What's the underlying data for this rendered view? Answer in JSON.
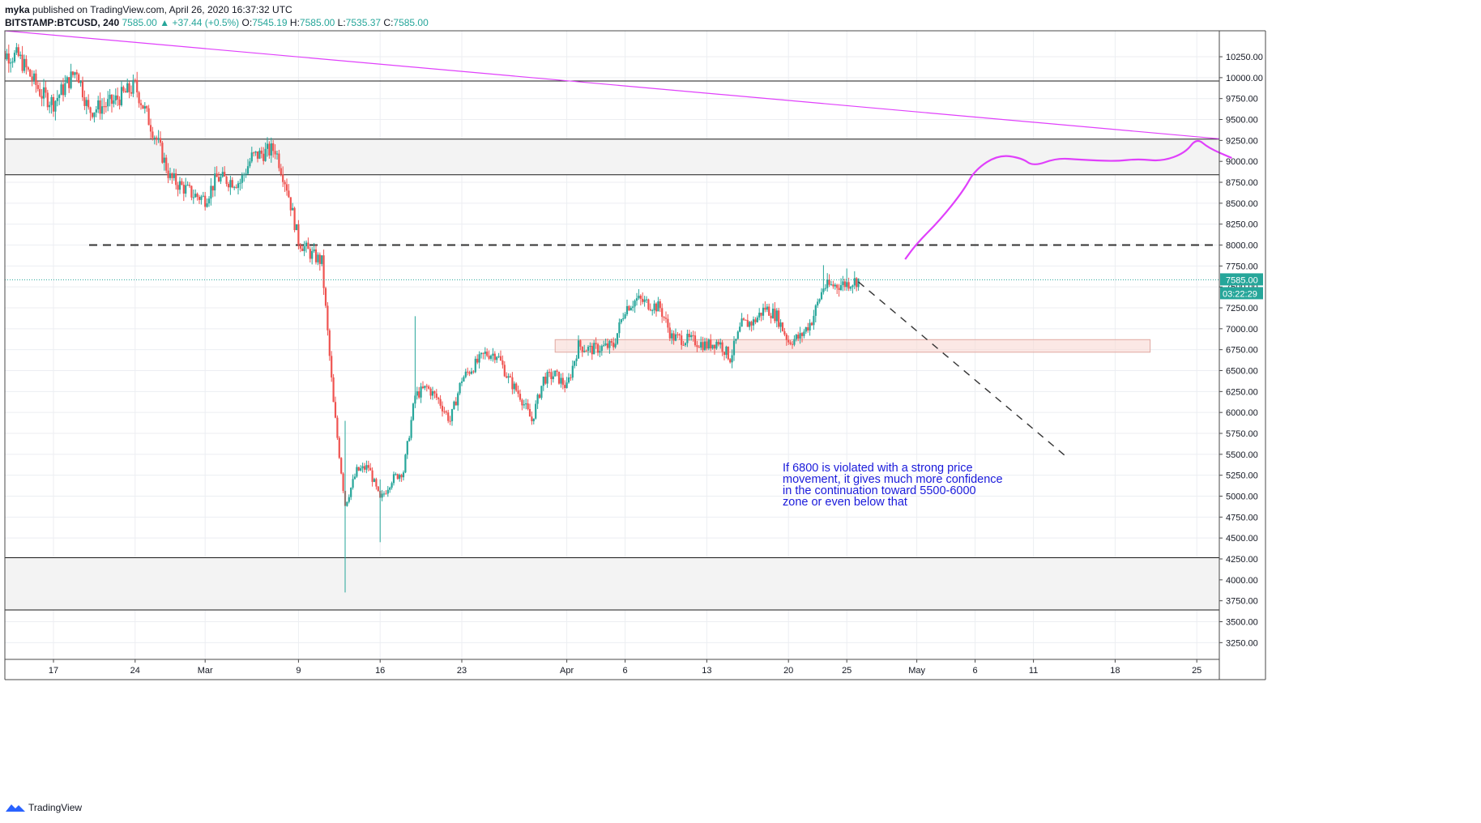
{
  "header": {
    "author": "myka",
    "published": "published on TradingView.com, April 26, 2020 16:37:32 UTC",
    "symbol": "BITSTAMP:BTCUSD, 240",
    "change_label": "▲",
    "last": "7585.00",
    "change": "+37.44 (+0.5%)",
    "o_label": "O:",
    "o_val": "7545.19",
    "h_label": "H:",
    "h_val": "7585.00",
    "l_label": "L:",
    "l_val": "7535.37",
    "c_label": "C:",
    "c_val": "7585.00"
  },
  "footer": {
    "brand": "TradingView"
  },
  "colors": {
    "up": "#26a69a",
    "down": "#ef5350",
    "magenta": "#e040fb",
    "annotation": "#1a1adb",
    "zone": "#f8d8d3"
  },
  "chart_data": {
    "type": "candlestick",
    "ylim": [
      3050,
      10560
    ],
    "yticks": [
      10250,
      10000,
      9750,
      9500,
      9250,
      9000,
      8750,
      8500,
      8250,
      8000,
      7750,
      7500,
      7250,
      7000,
      6750,
      6500,
      6250,
      6000,
      5750,
      5500,
      5250,
      5000,
      4750,
      4500,
      4250,
      4000,
      3750,
      3500,
      3250
    ],
    "ytick_labels": [
      "10250.00",
      "10000.00",
      "9750.00",
      "9500.00",
      "9250.00",
      "9000.00",
      "8750.00",
      "8500.00",
      "8250.00",
      "8000.00",
      "7750.00",
      "7500.00",
      "7250.00",
      "7000.00",
      "6750.00",
      "6500.00",
      "6250.00",
      "6000.00",
      "5750.00",
      "5500.00",
      "5250.00",
      "5000.00",
      "4750.00",
      "4500.00",
      "4250.00",
      "4000.00",
      "3750.00",
      "3500.00",
      "3250.00"
    ],
    "xticks": [
      {
        "label": "17",
        "date": "2020-02-17"
      },
      {
        "label": "24",
        "date": "2020-02-24"
      },
      {
        "label": "Mar",
        "date": "2020-03-01"
      },
      {
        "label": "9",
        "date": "2020-03-09"
      },
      {
        "label": "16",
        "date": "2020-03-16"
      },
      {
        "label": "23",
        "date": "2020-03-23"
      },
      {
        "label": "Apr",
        "date": "2020-04-01"
      },
      {
        "label": "6",
        "date": "2020-04-06"
      },
      {
        "label": "13",
        "date": "2020-04-13"
      },
      {
        "label": "20",
        "date": "2020-04-20"
      },
      {
        "label": "25",
        "date": "2020-04-25"
      },
      {
        "label": "May",
        "date": "2020-05-01"
      },
      {
        "label": "6",
        "date": "2020-05-06"
      },
      {
        "label": "11",
        "date": "2020-05-11"
      },
      {
        "label": "18",
        "date": "2020-05-18"
      },
      {
        "label": "25",
        "date": "2020-05-25"
      }
    ],
    "price_path": [
      [
        "2020-02-12",
        10300
      ],
      [
        "2020-02-14",
        10250
      ],
      [
        "2020-02-16",
        9800
      ],
      [
        "2020-02-17",
        9700
      ],
      [
        "2020-02-19",
        10100
      ],
      [
        "2020-02-20",
        9600
      ],
      [
        "2020-02-22",
        9700
      ],
      [
        "2020-02-24",
        9900
      ],
      [
        "2020-02-26",
        9200
      ],
      [
        "2020-02-27",
        8800
      ],
      [
        "2020-02-29",
        8600
      ],
      [
        "2020-03-01",
        8550
      ],
      [
        "2020-03-02",
        8800
      ],
      [
        "2020-03-04",
        8750
      ],
      [
        "2020-03-05",
        9050
      ],
      [
        "2020-03-07",
        9150
      ],
      [
        "2020-03-08",
        8700
      ],
      [
        "2020-03-09",
        8050
      ],
      [
        "2020-03-10",
        7900
      ],
      [
        "2020-03-11",
        7800
      ],
      [
        "2020-03-12",
        6100
      ],
      [
        "2020-03-13",
        4900
      ],
      [
        "2020-03-14",
        5300
      ],
      [
        "2020-03-15",
        5350
      ],
      [
        "2020-03-16",
        4950
      ],
      [
        "2020-03-17",
        5200
      ],
      [
        "2020-03-18",
        5300
      ],
      [
        "2020-03-19",
        6200
      ],
      [
        "2020-03-20",
        6300
      ],
      [
        "2020-03-21",
        6150
      ],
      [
        "2020-03-22",
        5900
      ],
      [
        "2020-03-23",
        6400
      ],
      [
        "2020-03-25",
        6700
      ],
      [
        "2020-03-26",
        6700
      ],
      [
        "2020-03-27",
        6400
      ],
      [
        "2020-03-28",
        6200
      ],
      [
        "2020-03-29",
        5900
      ],
      [
        "2020-03-30",
        6400
      ],
      [
        "2020-03-31",
        6450
      ],
      [
        "2020-04-01",
        6300
      ],
      [
        "2020-04-02",
        6800
      ],
      [
        "2020-04-03",
        6750
      ],
      [
        "2020-04-05",
        6800
      ],
      [
        "2020-04-06",
        7250
      ],
      [
        "2020-04-07",
        7350
      ],
      [
        "2020-04-08",
        7300
      ],
      [
        "2020-04-09",
        7250
      ],
      [
        "2020-04-10",
        6900
      ],
      [
        "2020-04-12",
        6850
      ],
      [
        "2020-04-13",
        6800
      ],
      [
        "2020-04-14",
        6850
      ],
      [
        "2020-04-15",
        6650
      ],
      [
        "2020-04-16",
        7050
      ],
      [
        "2020-04-17",
        7080
      ],
      [
        "2020-04-18",
        7250
      ],
      [
        "2020-04-19",
        7150
      ],
      [
        "2020-04-20",
        6850
      ],
      [
        "2020-04-21",
        6900
      ],
      [
        "2020-04-22",
        7100
      ],
      [
        "2020-04-23",
        7500
      ],
      [
        "2020-04-24",
        7520
      ],
      [
        "2020-04-25",
        7540
      ],
      [
        "2020-04-26",
        7585
      ]
    ],
    "last_price": 7585.0,
    "countdown": "03:22:29",
    "horizontal_lines": [
      9960,
      9265,
      8840,
      4265,
      3640
    ],
    "gray_zones": [
      [
        8840,
        9265
      ],
      [
        3640,
        4265
      ]
    ],
    "dashed_level": 8000,
    "last_price_line": 7585,
    "demand_zone": {
      "from_date": "2020-03-31",
      "to_date": "2020-05-21",
      "low": 6720,
      "high": 6870
    },
    "trendline": [
      [
        "2020-02-12",
        10560
      ],
      [
        "2020-05-28",
        9270
      ]
    ],
    "projection_up": [
      [
        "2020-04-30",
        7830
      ],
      [
        "2020-05-01",
        8020
      ],
      [
        "2020-05-03",
        8300
      ],
      [
        "2020-05-05",
        8650
      ],
      [
        "2020-05-06",
        8900
      ],
      [
        "2020-05-08",
        9080
      ],
      [
        "2020-05-10",
        9040
      ],
      [
        "2020-05-11",
        8940
      ],
      [
        "2020-05-13",
        9040
      ],
      [
        "2020-05-15",
        9020
      ],
      [
        "2020-05-18",
        9000
      ],
      [
        "2020-05-20",
        9030
      ],
      [
        "2020-05-22",
        9000
      ],
      [
        "2020-05-24",
        9100
      ],
      [
        "2020-05-25",
        9280
      ],
      [
        "2020-05-26",
        9160
      ],
      [
        "2020-05-28",
        9040
      ]
    ],
    "projection_down": [
      [
        "2020-04-26",
        7560
      ],
      [
        "2020-05-14",
        5450
      ]
    ],
    "annotation": [
      "If 6800 is violated with a strong price",
      "movement, it gives much more confidence",
      "in the continuation toward 5500-6000",
      "zone or even below that"
    ]
  }
}
